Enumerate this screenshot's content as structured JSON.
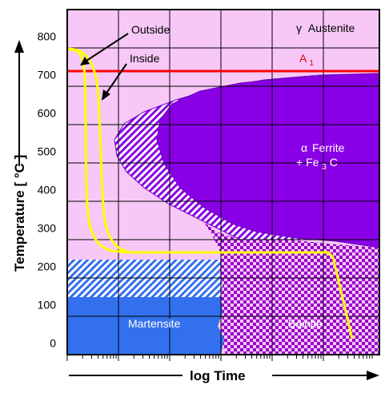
{
  "chart_data": {
    "type": "diagram",
    "axis": {
      "y_title": "Temperature [ °C ]",
      "x_title": "log  Time",
      "y_ticks": [
        0,
        100,
        200,
        300,
        400,
        500,
        600,
        700,
        800
      ],
      "ylim": [
        -30,
        870
      ],
      "x_scale": "log"
    },
    "regions": {
      "austenite": {
        "symbol": "γ",
        "name": "Austenite"
      },
      "a1": {
        "label": "A",
        "sub": "1",
        "temperature": 720
      },
      "ferrite": {
        "line1_symbol": "α",
        "line1": "Ferrite",
        "line2": "+ Fe",
        "line2_sub": "3",
        "line2_end": "C"
      },
      "martensite": {
        "label": "Martensite",
        "ms_start": 220,
        "m50": 125
      },
      "bainite": {
        "label": "Bainite"
      }
    },
    "curves": {
      "outside": {
        "label": "Outside"
      },
      "inside": {
        "label": "Inside"
      },
      "hold_temperature": 240
    },
    "colors": {
      "background": "#f7c8f7",
      "ferrite": "#8a00e6",
      "martensite": "#3370ee",
      "a1_line": "#ff0000",
      "cooling_curve": "#ffff00",
      "bainite_check": "#9900cc"
    }
  }
}
